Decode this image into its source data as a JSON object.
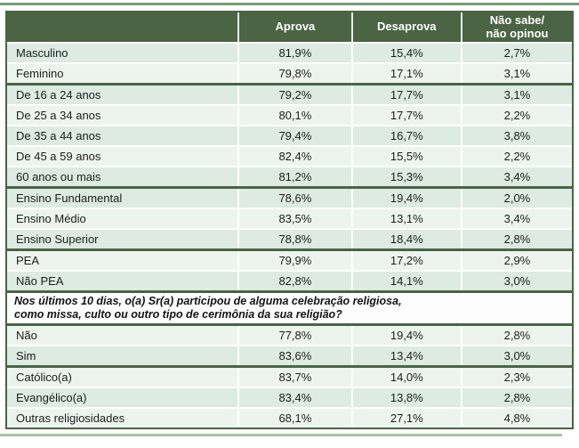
{
  "colors": {
    "header_bg": "#4a6444",
    "row_shade_dark": "#ddebe2",
    "row_shade_light": "#edf4ef",
    "question_bg": "#fcfdfc",
    "group_separator": "#4a6444",
    "top_rule": "#7a997a",
    "bottom_rule": "#a9bfa9",
    "header_text": "#ffffff",
    "body_text": "#1d1d1d"
  },
  "chart_data": {
    "type": "table",
    "columns": [
      "",
      "Aprova",
      "Desaprova",
      "Não sabe/\nnão opinou"
    ],
    "groups": [
      {
        "rows": [
          {
            "label": "Masculino",
            "values": [
              "81,9%",
              "15,4%",
              "2,7%"
            ],
            "shade": "dark"
          },
          {
            "label": "Feminino",
            "values": [
              "79,8%",
              "17,1%",
              "3,1%"
            ],
            "shade": "light"
          }
        ]
      },
      {
        "rows": [
          {
            "label": "De 16 a 24 anos",
            "values": [
              "79,2%",
              "17,7%",
              "3,1%"
            ],
            "shade": "dark"
          },
          {
            "label": "De 25 a 34 anos",
            "values": [
              "80,1%",
              "17,7%",
              "2,2%"
            ],
            "shade": "light"
          },
          {
            "label": "De 35 a 44 anos",
            "values": [
              "79,4%",
              "16,7%",
              "3,8%"
            ],
            "shade": "dark"
          },
          {
            "label": "De 45 a 59 anos",
            "values": [
              "82,4%",
              "15,5%",
              "2,2%"
            ],
            "shade": "light"
          },
          {
            "label": "60 anos ou mais",
            "values": [
              "81,2%",
              "15,3%",
              "3,4%"
            ],
            "shade": "dark"
          }
        ]
      },
      {
        "rows": [
          {
            "label": "Ensino Fundamental",
            "values": [
              "78,6%",
              "19,4%",
              "2,0%"
            ],
            "shade": "dark"
          },
          {
            "label": "Ensino Médio",
            "values": [
              "83,5%",
              "13,1%",
              "3,4%"
            ],
            "shade": "light"
          },
          {
            "label": "Ensino Superior",
            "values": [
              "78,8%",
              "18,4%",
              "2,8%"
            ],
            "shade": "dark"
          }
        ]
      },
      {
        "rows": [
          {
            "label": "PEA",
            "values": [
              "79,9%",
              "17,2%",
              "2,9%"
            ],
            "shade": "light"
          },
          {
            "label": "Não PEA",
            "values": [
              "82,8%",
              "14,1%",
              "3,0%"
            ],
            "shade": "dark"
          }
        ]
      },
      {
        "question": "Nos últimos 10 dias, o(a) Sr(a) participou de alguma celebração religiosa,\ncomo missa, culto ou outro tipo de cerimônia da sua religião?"
      },
      {
        "after_question": true,
        "rows": [
          {
            "label": "Não",
            "values": [
              "77,8%",
              "19,4%",
              "2,8%"
            ],
            "shade": "light"
          },
          {
            "label": "Sim",
            "values": [
              "83,6%",
              "13,4%",
              "3,0%"
            ],
            "shade": "dark"
          }
        ]
      },
      {
        "rows": [
          {
            "label": "Católico(a)",
            "values": [
              "83,7%",
              "14,0%",
              "2,3%"
            ],
            "shade": "light"
          },
          {
            "label": "Evangélico(a)",
            "values": [
              "83,4%",
              "13,8%",
              "2,8%"
            ],
            "shade": "dark"
          },
          {
            "label": "Outras religiosidades",
            "values": [
              "68,1%",
              "27,1%",
              "4,8%"
            ],
            "shade": "light"
          }
        ]
      }
    ]
  }
}
